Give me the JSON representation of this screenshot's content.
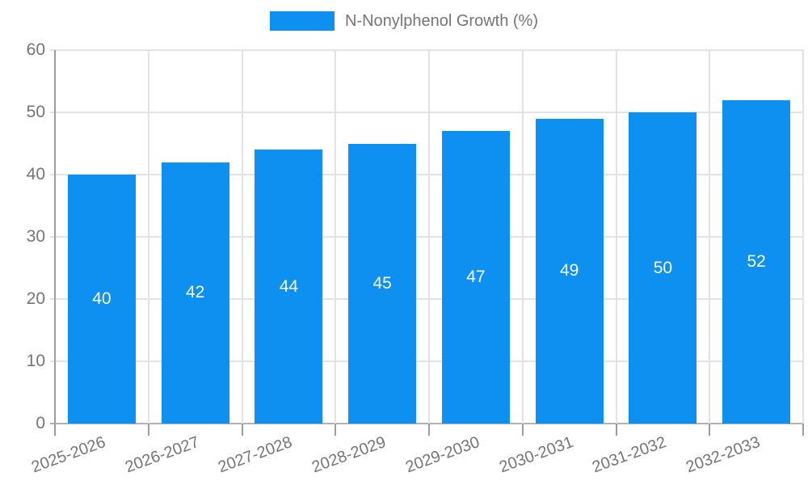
{
  "legend": {
    "label": "N-Nonylphenol Growth (%)"
  },
  "colors": {
    "bar": "#0e90f0",
    "grid": "#e3e3e3",
    "axis_line": "#9e9e9e",
    "baseline": "#b3b3b3",
    "tick_text": "#757575",
    "value_label": "#ffffff",
    "background": "#ffffff"
  },
  "chart_data": {
    "type": "bar",
    "title": "",
    "xlabel": "",
    "ylabel": "",
    "categories": [
      "2025-2026",
      "2026-2027",
      "2027-2028",
      "2028-2029",
      "2029-2030",
      "2030-2031",
      "2031-2032",
      "2032-2033"
    ],
    "series": [
      {
        "name": "N-Nonylphenol Growth (%)",
        "values": [
          40,
          42,
          44,
          45,
          47,
          49,
          50,
          52
        ]
      }
    ],
    "bar_labels": [
      "40",
      "42",
      "44",
      "45",
      "47",
      "49",
      "50",
      "52"
    ],
    "ylim": [
      0,
      60
    ],
    "yticks": [
      0,
      10,
      20,
      30,
      40,
      50,
      60
    ],
    "grid": true,
    "legend_position": "top",
    "x_label_rotation_deg": -20
  }
}
